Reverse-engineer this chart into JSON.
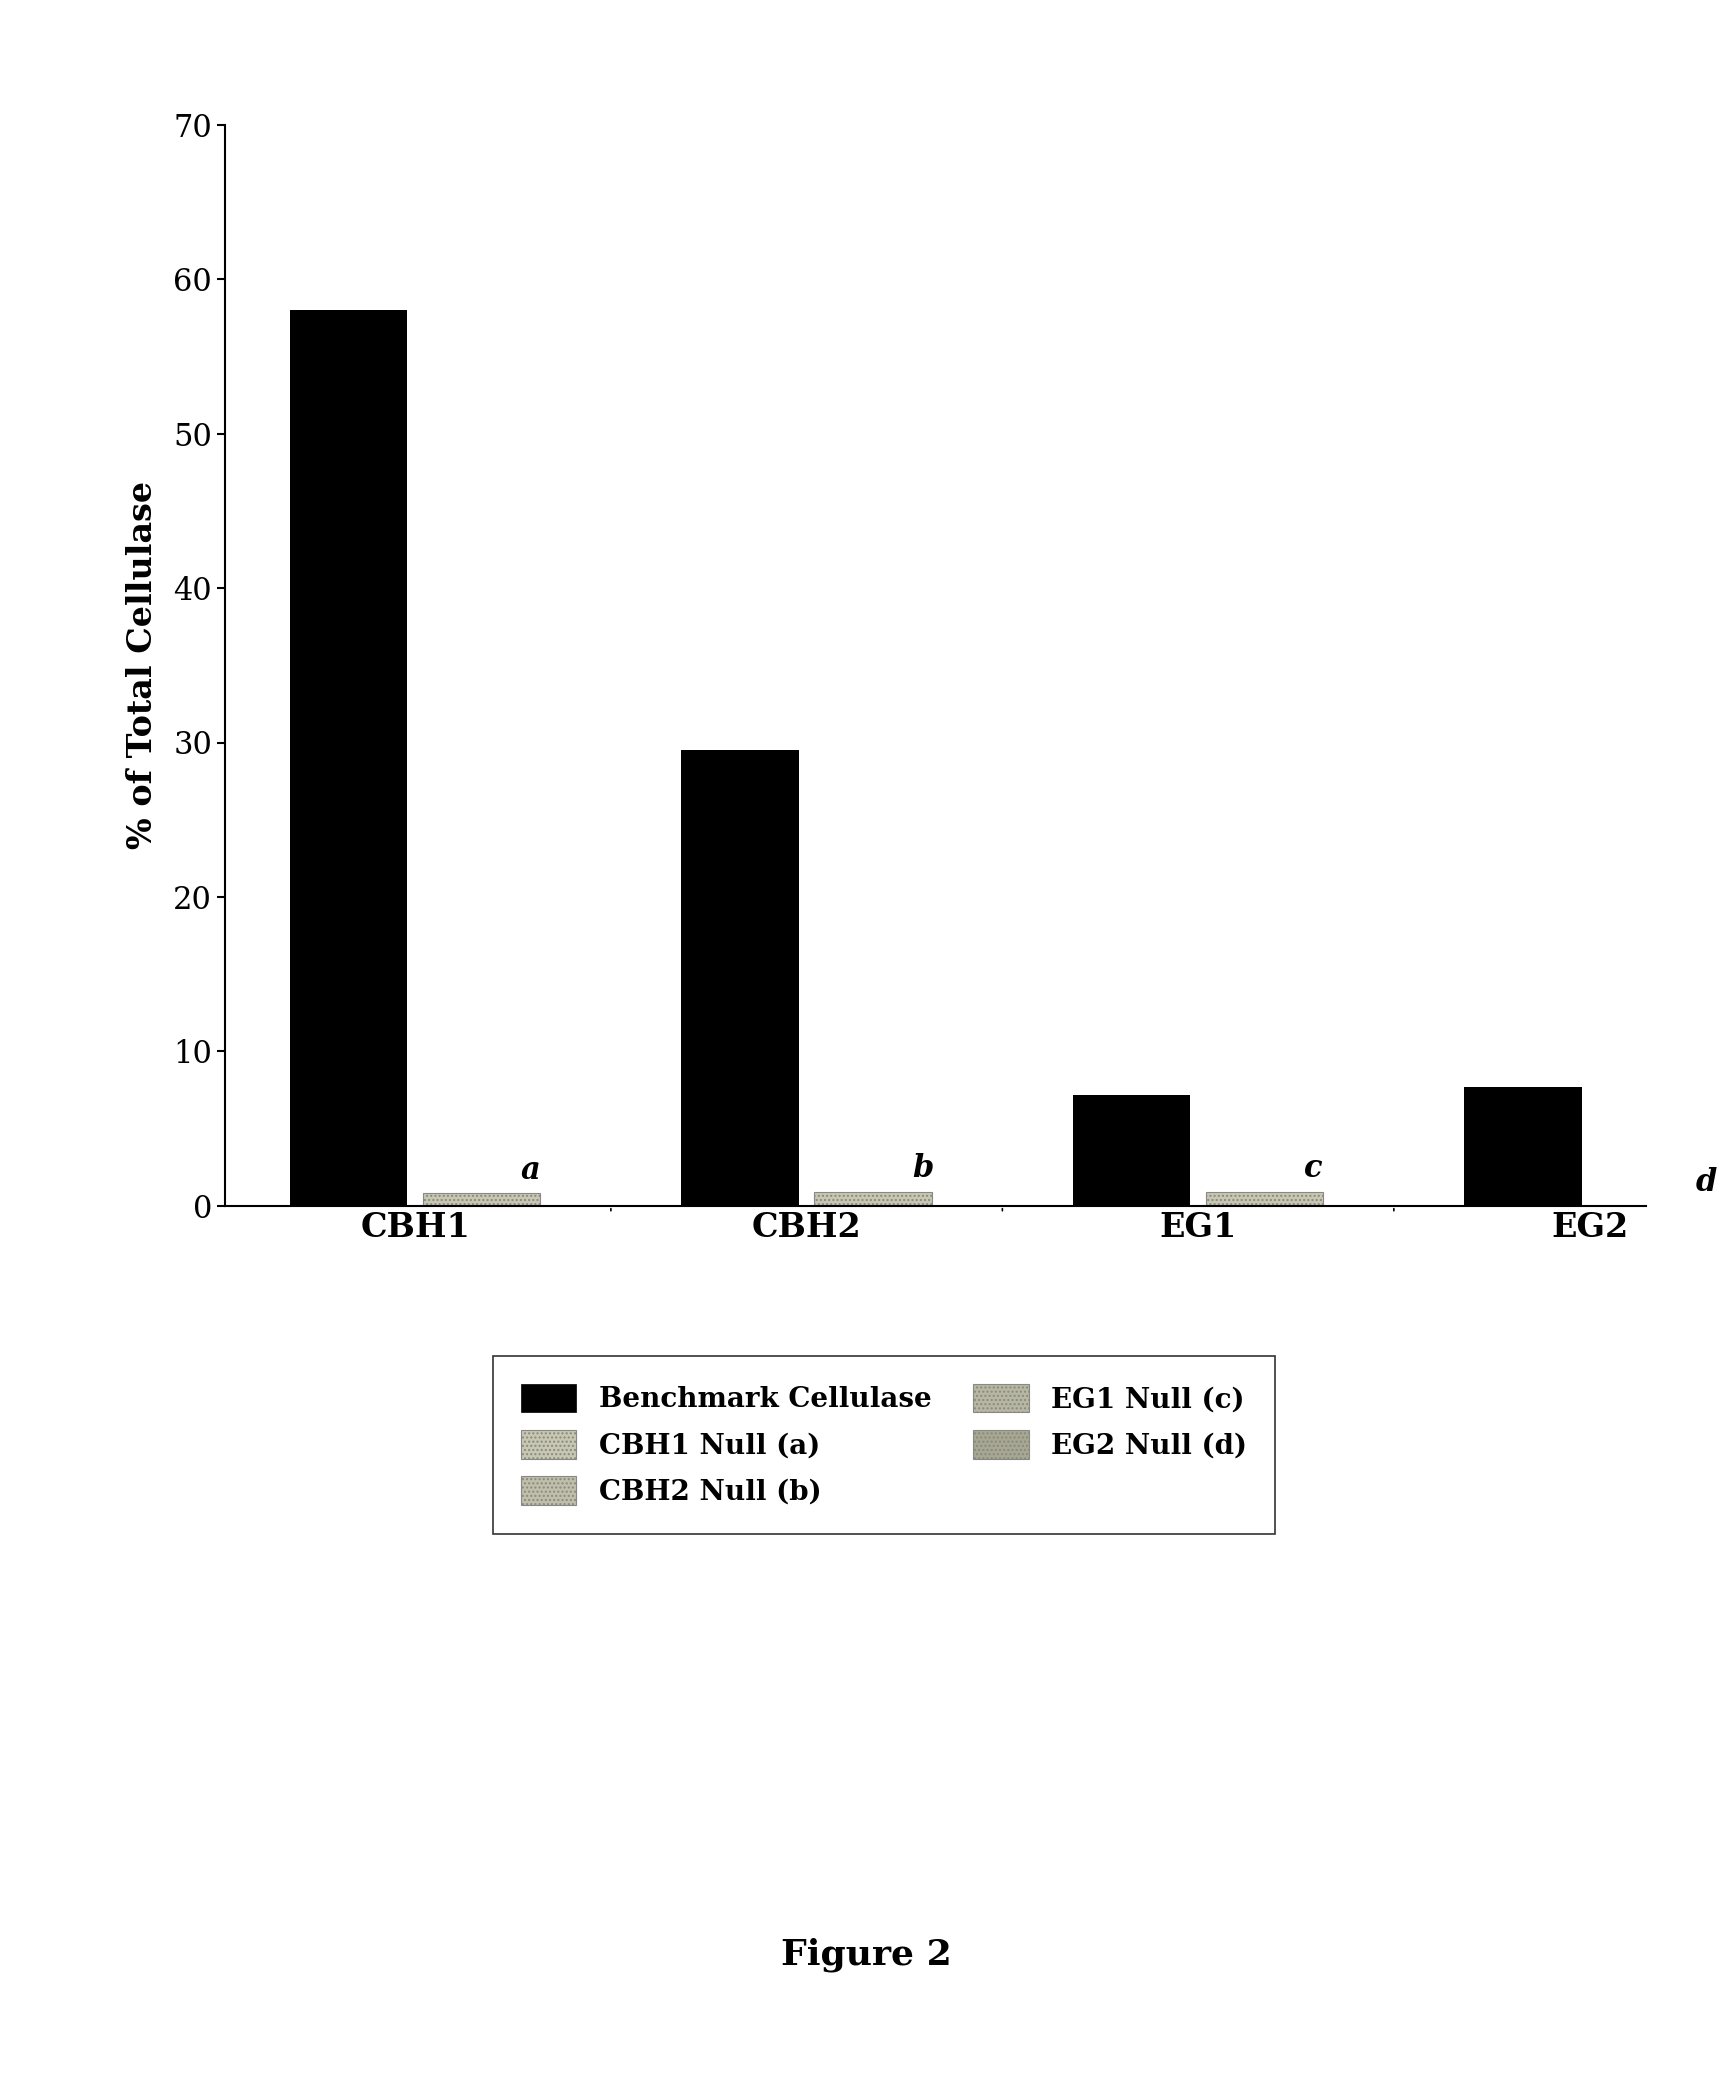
{
  "categories": [
    "CBH1",
    "CBH2",
    "EG1",
    "EG2"
  ],
  "benchmark_values": [
    58.0,
    29.5,
    7.2,
    7.7
  ],
  "null_values": [
    0.8,
    0.9,
    0.9,
    0.0
  ],
  "null_labels": [
    "a",
    "b",
    "c",
    "d"
  ],
  "benchmark_color": "#000000",
  "null_color": "#c8c8b0",
  "ylabel": "% of Total Cellulase",
  "ylim": [
    0,
    70
  ],
  "yticks": [
    0,
    10,
    20,
    30,
    40,
    50,
    60,
    70
  ],
  "legend_entries": [
    {
      "label": "Benchmark Cellulase",
      "color": "#000000"
    },
    {
      "label": "CBH1 Null (a)",
      "color": "#c8c8b0"
    },
    {
      "label": "CBH2 Null (b)",
      "color": "#c0c0a8"
    },
    {
      "label": "EG1 Null (c)",
      "color": "#b8b8a0"
    },
    {
      "label": "EG2 Null (d)",
      "color": "#a8a890"
    }
  ],
  "figure_label": "Figure 2",
  "bar_width": 0.3,
  "background_color": "#ffffff",
  "figwidth": 17.33,
  "figheight": 20.79,
  "dpi": 100
}
